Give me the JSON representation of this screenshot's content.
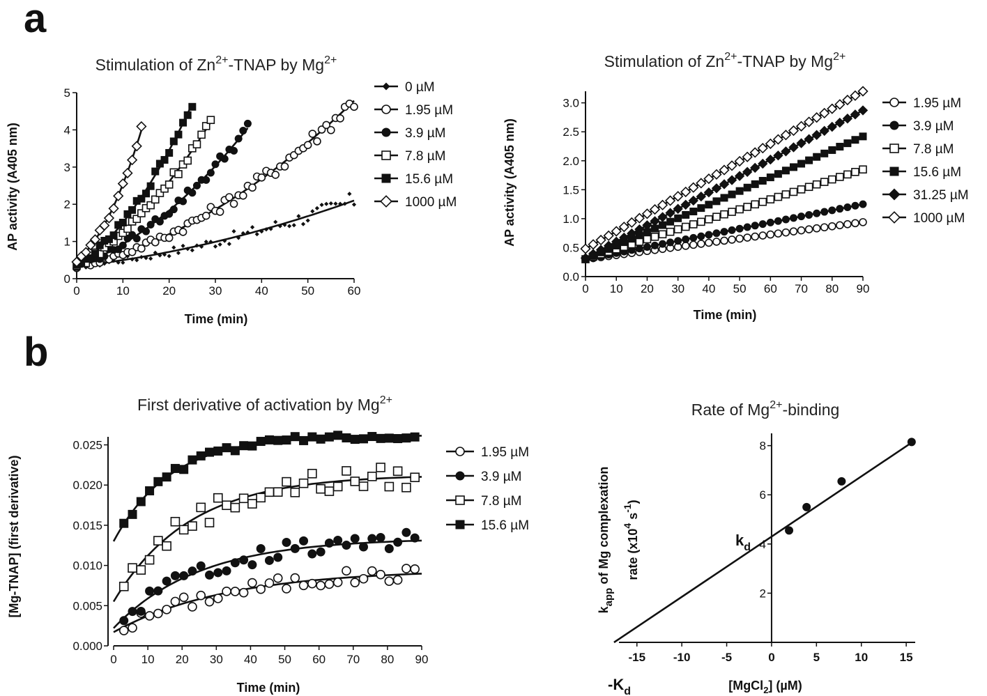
{
  "panel_labels": [
    "a",
    "b"
  ],
  "chart_data": [
    {
      "id": "a1",
      "type": "line",
      "title_pre": "Stimulation of Zn",
      "title_sup1": "2+",
      "title_mid": "-TNAP by Mg",
      "title_sup2": "2+",
      "xlabel": "Time (min)",
      "ylabel": "AP activity (A405 nm)",
      "xlim": [
        0,
        60
      ],
      "ylim": [
        0,
        5
      ],
      "xticks": [
        0,
        10,
        20,
        30,
        40,
        50,
        60
      ],
      "yticks": [
        0,
        1,
        2,
        3,
        4,
        5
      ],
      "legend_position": "right",
      "series": [
        {
          "name": "0 µM",
          "marker": "smalldiamond",
          "xmax": 60,
          "y0": 0.33,
          "rate": 0.0145,
          "acc": 0.00025
        },
        {
          "name": "1.95 µM",
          "marker": "opencircle",
          "xmax": 60,
          "y0": 0.33,
          "rate": 0.028,
          "acc": 0.00077
        },
        {
          "name": "3.9 µM",
          "marker": "filledcircle",
          "xmax": 37,
          "y0": 0.33,
          "rate": 0.045,
          "acc": 0.0015
        },
        {
          "name": "7.8 µM",
          "marker": "opensquare",
          "xmax": 29,
          "y0": 0.33,
          "rate": 0.07,
          "acc": 0.0022
        },
        {
          "name": "15.6 µM",
          "marker": "filledsquare",
          "xmax": 25,
          "y0": 0.33,
          "rate": 0.08,
          "acc": 0.0038
        },
        {
          "name": "1000 µM",
          "marker": "opendiamond",
          "xmax": 14,
          "y0": 0.5,
          "rate": 0.09,
          "acc": 0.0114
        }
      ]
    },
    {
      "id": "a2",
      "type": "line",
      "title_pre": "Stimulation of Zn",
      "title_sup1": "2+",
      "title_mid": "-TNAP by Mg",
      "title_sup2": "2+",
      "xlabel": "Time (min)",
      "ylabel": "AP activity (A405 nm)",
      "xlim": [
        0,
        90
      ],
      "ylim": [
        0,
        3.2
      ],
      "xticks": [
        0,
        10,
        20,
        30,
        40,
        50,
        60,
        70,
        80,
        90
      ],
      "yticks": [
        0.0,
        0.5,
        1.0,
        1.5,
        2.0,
        2.5,
        3.0
      ],
      "ytick_labels": [
        "0.0",
        "0.5",
        "1.0",
        "1.5",
        "2.0",
        "2.5",
        "3.0"
      ],
      "legend_position": "right",
      "series": [
        {
          "name": "1.95 µM",
          "marker": "opencircle",
          "y0": 0.3,
          "y90": 0.94
        },
        {
          "name": "3.9 µM",
          "marker": "filledcircle",
          "y0": 0.3,
          "y90": 1.25
        },
        {
          "name": "7.8 µM",
          "marker": "opensquare",
          "y0": 0.3,
          "y90": 1.85
        },
        {
          "name": "15.6 µM",
          "marker": "filledsquare",
          "y0": 0.3,
          "y90": 2.42
        },
        {
          "name": "31.25 µM",
          "marker": "filleddiamond",
          "y0": 0.32,
          "y90": 2.87
        },
        {
          "name": "1000 µM",
          "marker": "opendiamond",
          "y0": 0.48,
          "y90": 3.2
        }
      ]
    },
    {
      "id": "b1",
      "type": "scatter",
      "title_pre": "First derivative of activation by Mg",
      "title_sup1": "2+",
      "xlabel": "Time (min)",
      "ylabel": "[Mg-TNAP] (first derivative)",
      "xlim": [
        0,
        90
      ],
      "ylim": [
        0,
        0.026
      ],
      "xticks": [
        0,
        10,
        20,
        30,
        40,
        50,
        60,
        70,
        80,
        90
      ],
      "yticks": [
        0,
        0.005,
        0.01,
        0.015,
        0.02,
        0.025
      ],
      "ytick_labels": [
        "0.000",
        "0.005",
        "0.010",
        "0.015",
        "0.020",
        "0.025"
      ],
      "legend_position": "right",
      "series": [
        {
          "name": "1.95 µM",
          "marker": "opencircle",
          "a": 0.0017,
          "b": 0.0078,
          "k": 0.03,
          "noise": 0.0009
        },
        {
          "name": "3.9 µM",
          "marker": "filledcircle",
          "a": 0.0022,
          "b": 0.0112,
          "k": 0.04,
          "noise": 0.0011
        },
        {
          "name": "7.8 µM",
          "marker": "opensquare",
          "a": 0.0055,
          "b": 0.0158,
          "k": 0.045,
          "noise": 0.0015
        },
        {
          "name": "15.6 µM",
          "marker": "filledsquare",
          "a": 0.013,
          "b": 0.0132,
          "k": 0.06,
          "noise": 0.0004
        }
      ]
    },
    {
      "id": "b2",
      "type": "scatter",
      "title_pre": "Rate of Mg",
      "title_sup1": "2+",
      "title_mid": "-binding",
      "xlabel_pre": "[MgCl",
      "xlabel_sub": "2",
      "xlabel_post": "] (µM)",
      "ylabel_line1_pre": "k",
      "ylabel_line1_sub": "app",
      "ylabel_line1_post": " of Mg complexation",
      "ylabel_line2_pre": "rate (x10",
      "ylabel_line2_sup1": "4",
      "ylabel_line2_mid": " s",
      "ylabel_line2_sup2": "-1",
      "ylabel_line2_post": ")",
      "xlim": [
        -17,
        16
      ],
      "ylim": [
        0,
        8.5
      ],
      "xticks": [
        -15,
        -10,
        -5,
        0,
        5,
        10,
        15
      ],
      "yticks": [
        2,
        4,
        6,
        8
      ],
      "points": [
        {
          "x": 1.95,
          "y": 4.55
        },
        {
          "x": 3.9,
          "y": 5.5
        },
        {
          "x": 7.8,
          "y": 6.55
        },
        {
          "x": 15.6,
          "y": 8.15
        }
      ],
      "fit": {
        "slope": 0.245,
        "intercept": 4.3
      },
      "annotations": {
        "kd_pre": "k",
        "kd_sub": "d",
        "Kd_pre": "-K",
        "Kd_sub": "d"
      }
    }
  ]
}
